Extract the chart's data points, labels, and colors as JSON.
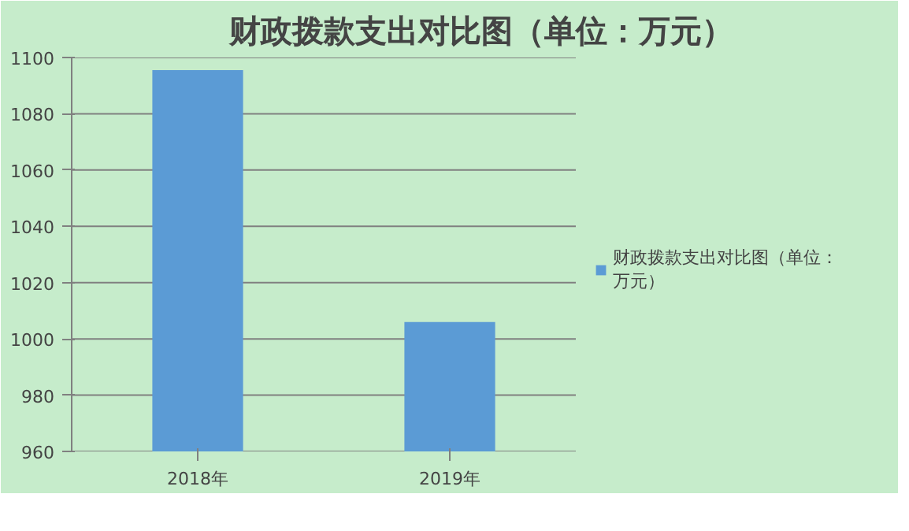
{
  "chart_data": {
    "type": "bar",
    "title": "财政拨款支出对比图（单位：万元）",
    "categories": [
      "2018年",
      "2019年"
    ],
    "series": [
      {
        "name": "财政拨款支出对比图（单位：万元）",
        "color": "#5b9bd5",
        "values": [
          1095.5,
          1006
        ]
      }
    ],
    "ylim": [
      960,
      1100
    ],
    "yticks": [
      960,
      980,
      1000,
      1020,
      1040,
      1060,
      1080,
      1100
    ],
    "grid": "y",
    "legend": "right"
  }
}
